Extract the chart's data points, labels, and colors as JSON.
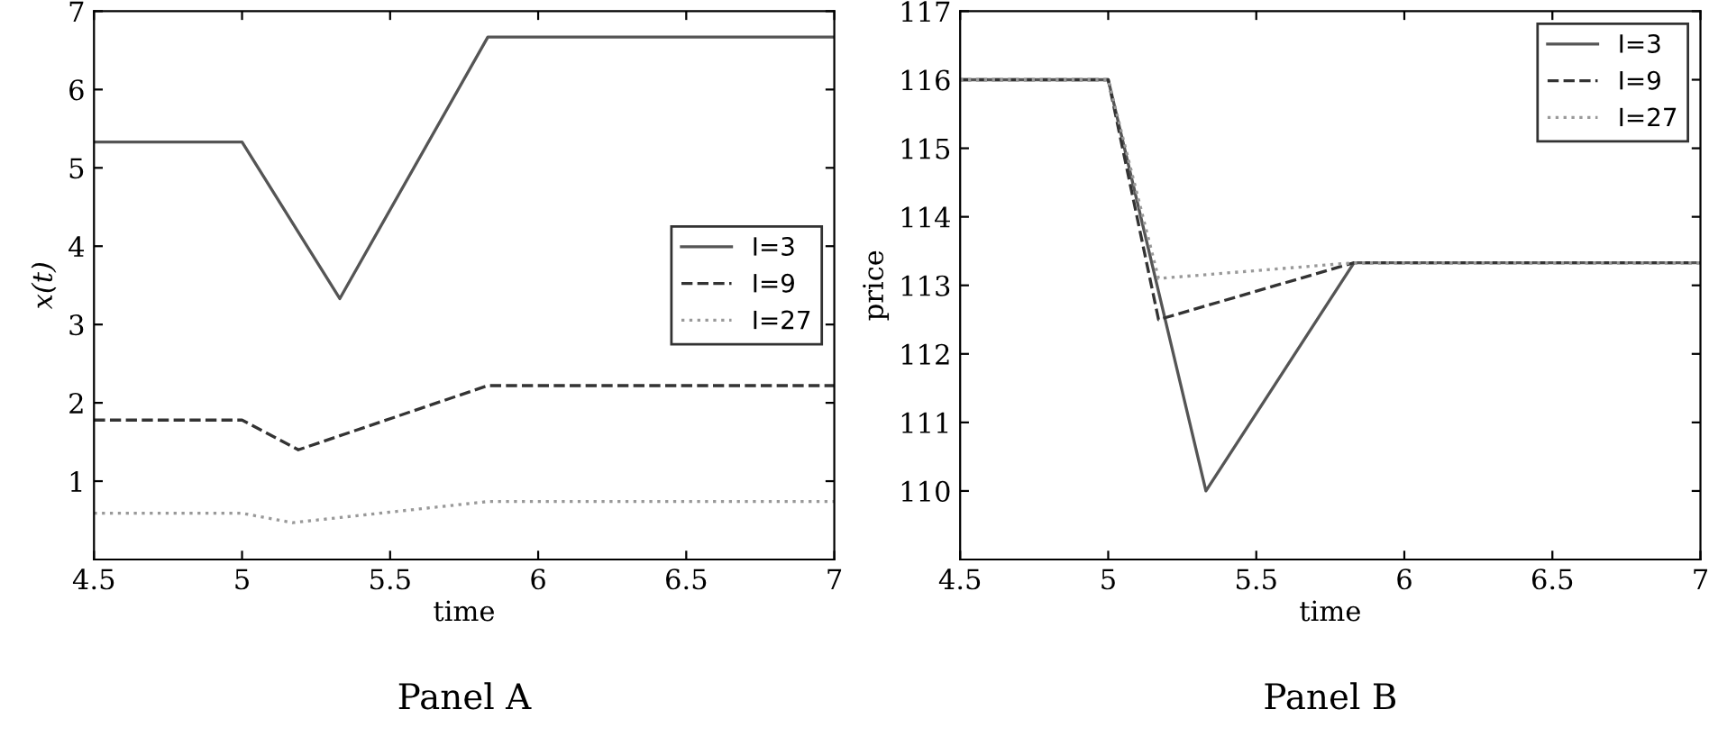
{
  "chart_data": [
    {
      "type": "line",
      "title": "Panel A",
      "xlabel": "time",
      "ylabel": "x(t)",
      "xlim": [
        4.5,
        7
      ],
      "xticks": [
        4.5,
        5,
        5.5,
        6,
        6.5,
        7
      ],
      "ylim": [
        0,
        7
      ],
      "yticks": [
        1,
        2,
        3,
        4,
        5,
        6,
        7
      ],
      "grid": false,
      "legend": "right",
      "series": [
        {
          "name": "I=3",
          "color": "#555555",
          "line_style": "solid",
          "x": [
            4.5,
            5,
            5.33,
            5.83,
            7
          ],
          "values": [
            5.33,
            5.33,
            3.33,
            6.67,
            6.67
          ]
        },
        {
          "name": "I=9",
          "color": "#333333",
          "line_style": "dashed",
          "x": [
            4.5,
            5,
            5.19,
            5.83,
            7
          ],
          "values": [
            1.78,
            1.78,
            1.4,
            2.22,
            2.22
          ]
        },
        {
          "name": "I=27",
          "color": "#999999",
          "line_style": "dotted",
          "x": [
            4.5,
            5,
            5.17,
            5.83,
            7
          ],
          "values": [
            0.59,
            0.59,
            0.47,
            0.74,
            0.74
          ]
        }
      ]
    },
    {
      "type": "line",
      "title": "Panel B",
      "xlabel": "time",
      "ylabel": "price",
      "xlim": [
        4.5,
        7
      ],
      "xticks": [
        4.5,
        5,
        5.5,
        6,
        6.5,
        7
      ],
      "ylim": [
        109,
        117
      ],
      "yticks": [
        110,
        111,
        112,
        113,
        114,
        115,
        116,
        117
      ],
      "grid": false,
      "legend": "top right",
      "series": [
        {
          "name": "I=3",
          "color": "#555555",
          "line_style": "solid",
          "x": [
            4.5,
            5,
            5.33,
            5.83,
            7
          ],
          "values": [
            116,
            116,
            110,
            113.33,
            113.33
          ]
        },
        {
          "name": "I=9",
          "color": "#333333",
          "line_style": "dashed",
          "x": [
            4.5,
            5,
            5.17,
            5.83,
            7
          ],
          "values": [
            116,
            116,
            112.5,
            113.33,
            113.33
          ]
        },
        {
          "name": "I=27",
          "color": "#999999",
          "line_style": "dotted",
          "x": [
            4.5,
            5,
            5.17,
            5.83,
            7
          ],
          "values": [
            116,
            116,
            113.1,
            113.33,
            113.33
          ]
        }
      ]
    }
  ]
}
